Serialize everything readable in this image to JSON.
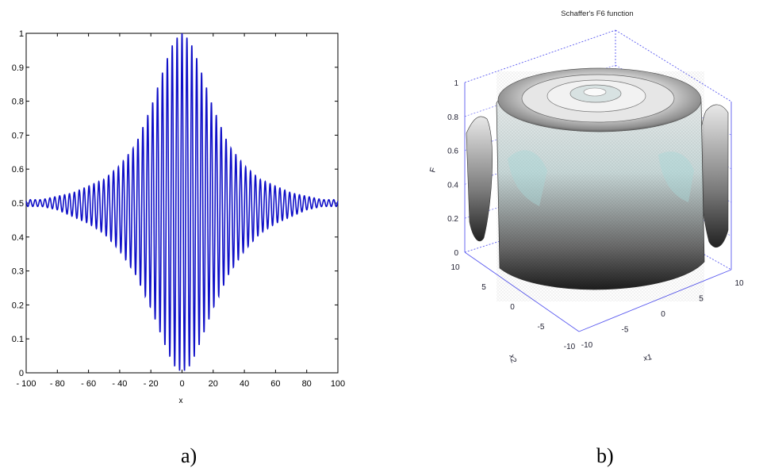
{
  "chart_data": [
    {
      "type": "line",
      "title": "",
      "xlabel": "x",
      "ylabel": "",
      "xlim": [
        -100,
        100
      ],
      "ylim": [
        0,
        1
      ],
      "x_ticks": [
        -100,
        -80,
        -60,
        -40,
        -20,
        0,
        20,
        40,
        60,
        80,
        100
      ],
      "y_ticks": [
        0,
        0.1,
        0.2,
        0.3,
        0.4,
        0.5,
        0.6,
        0.7,
        0.8,
        0.9,
        1
      ],
      "grid": false,
      "series": [
        {
          "color": "#1010c8",
          "x": [
            -100,
            -90,
            -80,
            -70,
            -60,
            -50,
            -40,
            -30,
            -20,
            -10,
            -5,
            0,
            5,
            10,
            20,
            30,
            40,
            50,
            60,
            70,
            80,
            90,
            100
          ],
          "y_upper": [
            0.51,
            0.51,
            0.52,
            0.53,
            0.55,
            0.57,
            0.61,
            0.67,
            0.78,
            0.92,
            0.98,
            1.0,
            0.98,
            0.92,
            0.78,
            0.67,
            0.61,
            0.57,
            0.55,
            0.53,
            0.52,
            0.51,
            0.51
          ],
          "y_lower": [
            0.49,
            0.49,
            0.48,
            0.46,
            0.44,
            0.41,
            0.36,
            0.29,
            0.19,
            0.07,
            0.02,
            0.0,
            0.02,
            0.07,
            0.19,
            0.29,
            0.36,
            0.41,
            0.44,
            0.46,
            0.48,
            0.49,
            0.49
          ],
          "oscillation_period": 3.14
        }
      ],
      "caption": "a)"
    },
    {
      "type": "surface",
      "title": "Schaffer's F6 function",
      "xlabel": "x1",
      "ylabel": "x2",
      "zlabel": "F",
      "xlim": [
        -10,
        10
      ],
      "ylim": [
        -10,
        10
      ],
      "zlim": [
        0,
        1
      ],
      "x_ticks": [
        -10,
        -5,
        0,
        5,
        10
      ],
      "y_ticks": [
        -10,
        -5,
        0,
        5,
        10
      ],
      "z_ticks": [
        0,
        0.2,
        0.4,
        0.6,
        0.8,
        1
      ],
      "grid": true,
      "colormap": [
        "#2a2a2a",
        "#8c8c8c",
        "#d8d8d8",
        "#a8d8d8",
        "#f4f4f4"
      ],
      "caption": "b)"
    }
  ],
  "captions": {
    "a": "a)",
    "b": "b)"
  }
}
